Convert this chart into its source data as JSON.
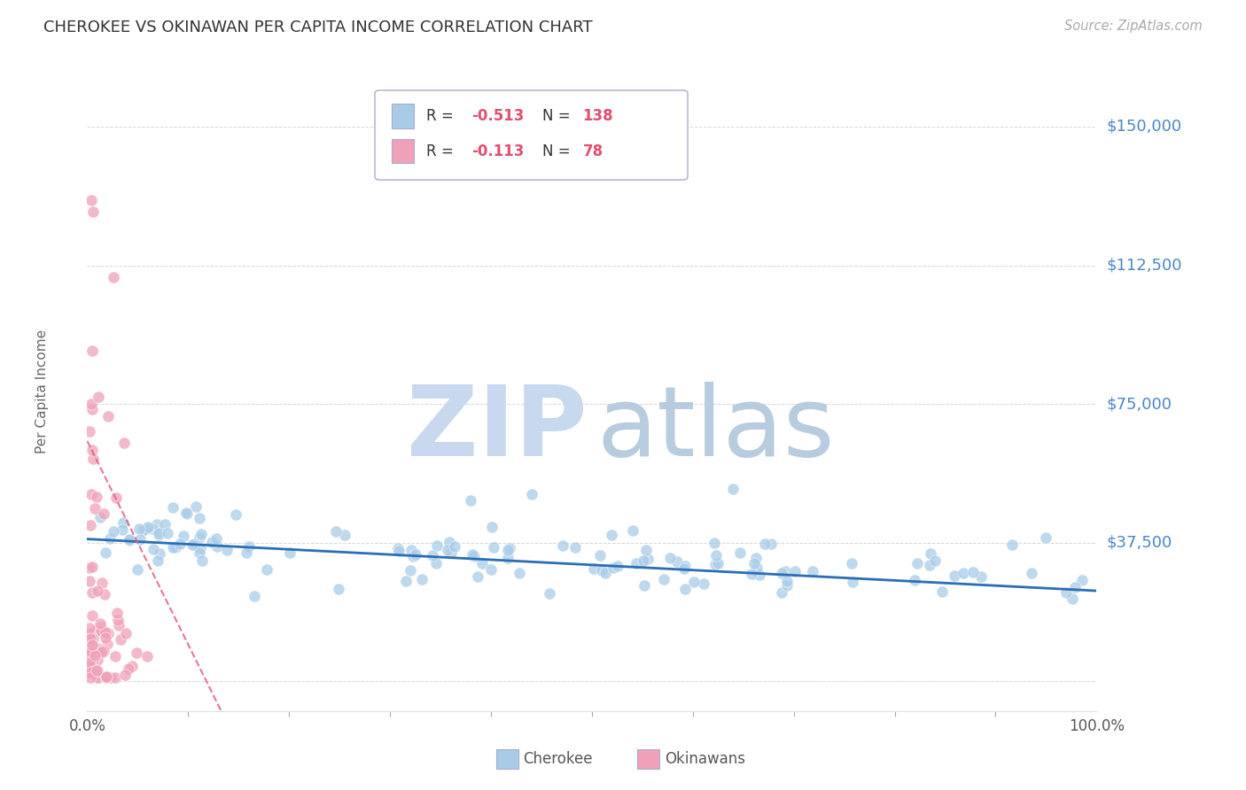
{
  "title": "CHEROKEE VS OKINAWAN PER CAPITA INCOME CORRELATION CHART",
  "source": "Source: ZipAtlas.com",
  "ylabel": "Per Capita Income",
  "xlim": [
    0,
    1.0
  ],
  "ylim": [
    -8000,
    165000
  ],
  "yticks": [
    0,
    37500,
    75000,
    112500,
    150000
  ],
  "ytick_labels": [
    "",
    "$37,500",
    "$75,000",
    "$112,500",
    "$150,000"
  ],
  "xtick_labels": [
    "0.0%",
    "100.0%"
  ],
  "cherokee_color": "#a8cce8",
  "okinawan_color": "#f0a0b8",
  "cherokee_line_color": "#2a6eb5",
  "okinawan_line_color": "#e06080",
  "grid_color": "#cccccc",
  "title_color": "#333333",
  "source_color": "#aaaaaa",
  "right_label_color": "#4a86c8",
  "background_color": "#ffffff",
  "watermark_zip_color": "#c8d8ee",
  "watermark_atlas_color": "#b8cce0",
  "legend_val_color": "#e05070",
  "legend_border_color": "#aaaacc"
}
